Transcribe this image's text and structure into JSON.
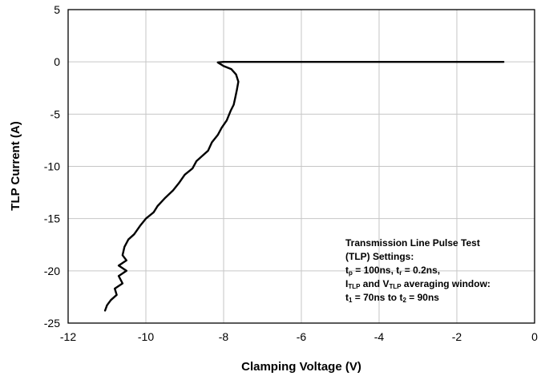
{
  "chart_data": {
    "type": "line",
    "title": "",
    "xlabel": "Clamping Voltage (V)",
    "ylabel": "TLP Current (A)",
    "xlim": [
      -12,
      0
    ],
    "ylim": [
      -25,
      5
    ],
    "x_ticks": [
      -12,
      -10,
      -8,
      -6,
      -4,
      -2,
      0
    ],
    "x_tick_labels": [
      "-12",
      "-10",
      "-8",
      "-6",
      "-4",
      "-2",
      "0"
    ],
    "y_ticks": [
      5,
      0,
      -5,
      -10,
      -15,
      -20,
      -25
    ],
    "y_tick_labels": [
      "5",
      "0",
      "-5",
      "-10",
      "-15",
      "-20",
      "-25"
    ],
    "grid": true,
    "series": [
      {
        "color": "#000000",
        "points": [
          [
            -0.8,
            0.0
          ],
          [
            -3.0,
            0.0
          ],
          [
            -5.0,
            0.0
          ],
          [
            -7.0,
            0.0
          ],
          [
            -8.0,
            0.0
          ],
          [
            -8.15,
            -0.05
          ],
          [
            -8.0,
            -0.4
          ],
          [
            -7.8,
            -0.7
          ],
          [
            -7.68,
            -1.2
          ],
          [
            -7.62,
            -1.9
          ],
          [
            -7.66,
            -2.7
          ],
          [
            -7.7,
            -3.4
          ],
          [
            -7.74,
            -4.1
          ],
          [
            -7.82,
            -4.7
          ],
          [
            -7.92,
            -5.6
          ],
          [
            -8.05,
            -6.3
          ],
          [
            -8.15,
            -7.0
          ],
          [
            -8.3,
            -7.7
          ],
          [
            -8.4,
            -8.5
          ],
          [
            -8.55,
            -9.0
          ],
          [
            -8.7,
            -9.5
          ],
          [
            -8.8,
            -10.2
          ],
          [
            -9.0,
            -10.8
          ],
          [
            -9.15,
            -11.6
          ],
          [
            -9.3,
            -12.3
          ],
          [
            -9.5,
            -13.0
          ],
          [
            -9.7,
            -13.8
          ],
          [
            -9.8,
            -14.4
          ],
          [
            -10.0,
            -15.0
          ],
          [
            -10.15,
            -15.7
          ],
          [
            -10.3,
            -16.5
          ],
          [
            -10.45,
            -17.0
          ],
          [
            -10.55,
            -17.7
          ],
          [
            -10.6,
            -18.5
          ],
          [
            -10.5,
            -19.0
          ],
          [
            -10.7,
            -19.5
          ],
          [
            -10.5,
            -20.0
          ],
          [
            -10.7,
            -20.5
          ],
          [
            -10.6,
            -21.2
          ],
          [
            -10.8,
            -21.7
          ],
          [
            -10.75,
            -22.3
          ],
          [
            -10.9,
            -22.8
          ],
          [
            -11.0,
            -23.3
          ],
          [
            -11.05,
            -23.8
          ]
        ]
      }
    ],
    "annotation": {
      "lines": [
        [
          {
            "t": "Transmission Line Pulse Test"
          }
        ],
        [
          {
            "t": "(TLP) Settings:"
          }
        ],
        [
          {
            "t": "t"
          },
          {
            "s": "p"
          },
          {
            "t": " = 100ns, t"
          },
          {
            "s": "r"
          },
          {
            "t": " = 0.2ns,"
          }
        ],
        [
          {
            "t": "I"
          },
          {
            "s": "TLP"
          },
          {
            "t": " and V"
          },
          {
            "s": "TLP"
          },
          {
            "t": " averaging window:"
          }
        ],
        [
          {
            "t": "t"
          },
          {
            "s": "1"
          },
          {
            "t": " = 70ns to t"
          },
          {
            "s": "2"
          },
          {
            "t": " = 90ns"
          }
        ]
      ]
    }
  }
}
